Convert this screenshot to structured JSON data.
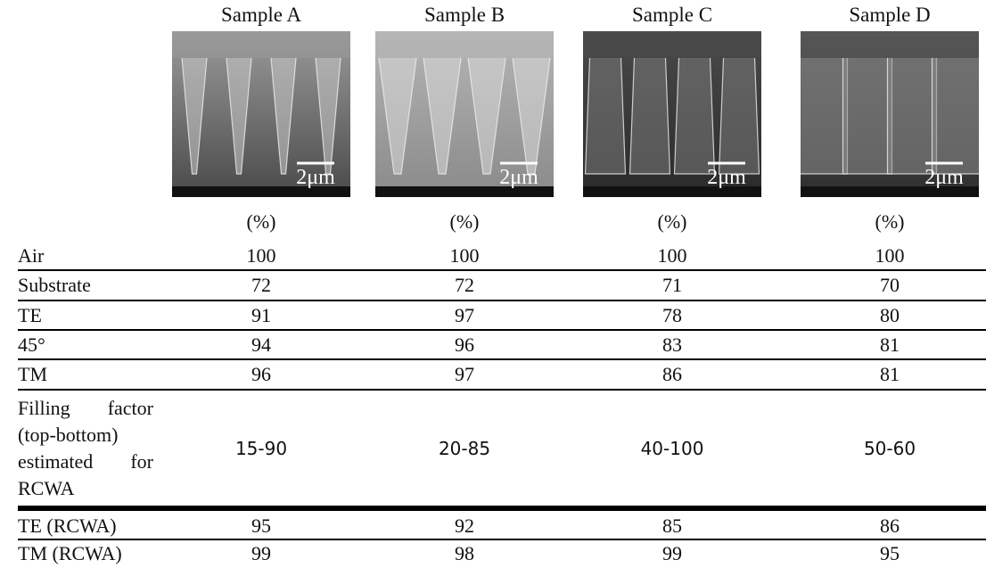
{
  "samples": [
    "Sample A",
    "Sample B",
    "Sample C",
    "Sample D"
  ],
  "scale_bar": "2μm",
  "unit_row": [
    "(%)",
    "(%)",
    "(%)",
    "(%)"
  ],
  "rows": [
    [
      "Air",
      100,
      100,
      100,
      100
    ],
    [
      "Substrate",
      72,
      72,
      71,
      70
    ],
    [
      "TE",
      91,
      97,
      78,
      80
    ],
    [
      "45°",
      94,
      96,
      83,
      81
    ],
    [
      "TM",
      96,
      97,
      86,
      81
    ],
    [
      "Filling factor (top-bottom) estimated for RCWA",
      "15-90",
      "20-85",
      "40-100",
      "50-60"
    ],
    [
      "TE (RCWA)",
      95,
      92,
      85,
      86
    ],
    [
      "TM (RCWA)",
      99,
      98,
      99,
      95
    ]
  ]
}
